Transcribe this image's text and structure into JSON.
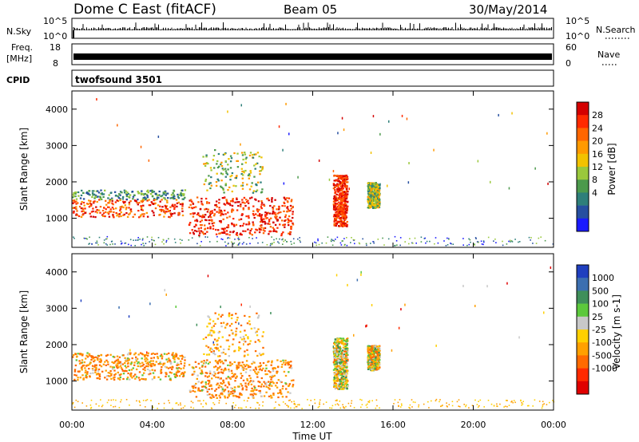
{
  "header": {
    "station": "Dome C East (fitACF)",
    "beam": "Beam 05",
    "date": "30/May/2014"
  },
  "noise_panel": {
    "left_label": "N.Sky",
    "left_ticks": [
      "10^5",
      "10^0"
    ],
    "right_label": "N.Search",
    "right_ticks": [
      "10^5",
      "10^0"
    ]
  },
  "freq_panel": {
    "left_label_line1": "Freq.",
    "left_label_line2": "[MHz]",
    "left_ticks": [
      "18",
      "8"
    ],
    "right_label": "Nave",
    "right_ticks": [
      "60",
      "0"
    ]
  },
  "cpid_panel": {
    "label": "CPID",
    "value": "twofsound 3501"
  },
  "x_axis": {
    "label": "Time UT",
    "ticks": [
      "00:00",
      "04:00",
      "08:00",
      "12:00",
      "16:00",
      "20:00",
      "00:00"
    ]
  },
  "chart_data": [
    {
      "type": "heatmap",
      "quantity": "power",
      "ylabel": "Slant Range [km]",
      "y_ticks": [
        1000,
        2000,
        3000,
        4000
      ],
      "ylim": [
        200,
        4500
      ],
      "xlim_hours": [
        0,
        24
      ],
      "colorbar_label": "Power [dB]",
      "colorbar_ticks": [
        "28",
        "24",
        "20",
        "16",
        "12",
        "8",
        "4"
      ],
      "colorbar_colors": [
        "#d40000",
        "#ff2a00",
        "#ff6600",
        "#ff9a00",
        "#f2c200",
        "#9ac83c",
        "#4c9a4c",
        "#2e7f7a",
        "#264fa0",
        "#1a1aff"
      ],
      "regions": [
        {
          "t0": 0.0,
          "t1": 5.6,
          "r0": 1050,
          "r1": 1800,
          "level": "high"
        },
        {
          "t0": 5.8,
          "t1": 11.0,
          "r0": 550,
          "r1": 1600,
          "level": "peak"
        },
        {
          "t0": 6.5,
          "t1": 9.5,
          "r0": 1700,
          "r1": 2900,
          "level": "scatter"
        },
        {
          "t0": 13.0,
          "t1": 13.7,
          "r0": 800,
          "r1": 2200,
          "level": "peak"
        },
        {
          "t0": 14.7,
          "t1": 15.3,
          "r0": 1300,
          "r1": 2000,
          "level": "mid"
        }
      ]
    },
    {
      "type": "heatmap",
      "quantity": "velocity",
      "ylabel": "Slant Range [km]",
      "y_ticks": [
        1000,
        2000,
        3000,
        4000
      ],
      "ylim": [
        200,
        4500
      ],
      "xlim_hours": [
        0,
        24
      ],
      "colorbar_label": "Velocity [m s-1]",
      "colorbar_ticks": [
        "1000",
        "500",
        "100",
        "25",
        "-25",
        "-100",
        "-500",
        "-1000"
      ],
      "colorbar_colors": [
        "#1f3fbf",
        "#3c6fb0",
        "#3f8f5a",
        "#5cc93c",
        "#c8c8c8",
        "#ffd000",
        "#ffa000",
        "#ff6a00",
        "#ff2a00",
        "#e00000"
      ],
      "regions": [
        {
          "t0": 0.0,
          "t1": 5.6,
          "r0": 1050,
          "r1": 1800,
          "level": "neg"
        },
        {
          "t0": 5.8,
          "t1": 11.0,
          "r0": 550,
          "r1": 1600,
          "level": "neg"
        },
        {
          "t0": 6.5,
          "t1": 9.5,
          "r0": 1700,
          "r1": 2900,
          "level": "scatter"
        },
        {
          "t0": 13.0,
          "t1": 13.7,
          "r0": 800,
          "r1": 2200,
          "level": "mixed"
        },
        {
          "t0": 14.7,
          "t1": 15.3,
          "r0": 1300,
          "r1": 2000,
          "level": "mixed"
        }
      ]
    }
  ]
}
